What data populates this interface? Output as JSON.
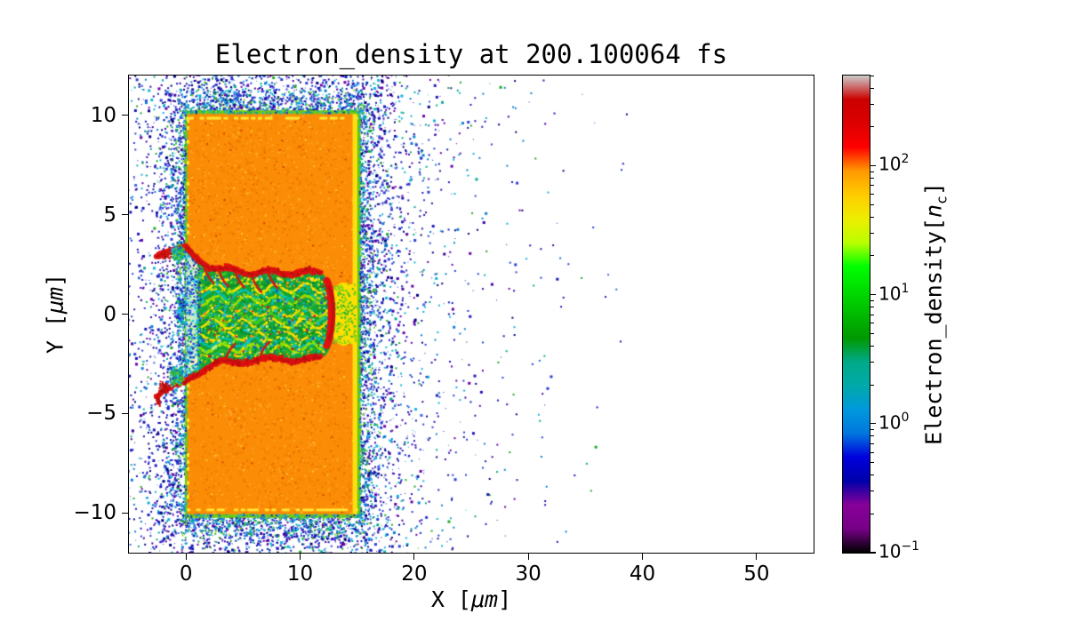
{
  "chart_data": {
    "type": "heatmap",
    "title": "Electron_density at 200.100064 fs",
    "time_fs": 200.100064,
    "xlabel": "X [μm]",
    "xlabel_parts": {
      "prefix": "X [",
      "unit": "μm",
      "suffix": "]"
    },
    "ylabel": "Y [μm]",
    "ylabel_parts": {
      "prefix": "Y [",
      "unit": "μm",
      "suffix": "]"
    },
    "xlim": [
      -5,
      55
    ],
    "ylim": [
      -12,
      12
    ],
    "xticks": [
      {
        "value": 0,
        "label": "0"
      },
      {
        "value": 10,
        "label": "10"
      },
      {
        "value": 20,
        "label": "20"
      },
      {
        "value": 30,
        "label": "30"
      },
      {
        "value": 40,
        "label": "40"
      },
      {
        "value": 50,
        "label": "50"
      }
    ],
    "yticks": [
      {
        "value": 10,
        "label": "10"
      },
      {
        "value": 5,
        "label": "5"
      },
      {
        "value": 0,
        "label": "0"
      },
      {
        "value": -5,
        "label": "−5"
      },
      {
        "value": -10,
        "label": "−10"
      }
    ],
    "grid": false,
    "colorbar": {
      "label": "Electron_density[n_c]",
      "label_parts": {
        "text": "Electron_density[",
        "var": "n",
        "sub": "c",
        "suffix": "]"
      },
      "scale": "log",
      "colormap": "nipy_spectral",
      "vmin": 0.1,
      "vmax": 500,
      "ticks": [
        {
          "value": 100,
          "base": "10",
          "exp": "2"
        },
        {
          "value": 10,
          "base": "10",
          "exp": "1"
        },
        {
          "value": 1,
          "base": "10",
          "exp": "0"
        },
        {
          "value": 0.1,
          "base": "10",
          "exp": "−1"
        }
      ]
    },
    "features": {
      "description": "2D particle-in-cell electron density map: laser-bored channel in an overdense plasma slab with blow-off plasma halo",
      "target_slab": {
        "x_range_um": [
          0,
          15
        ],
        "y_range_um": [
          -10,
          10
        ],
        "density_nc": 90
      },
      "channel": {
        "x_range_um": [
          -0.5,
          13.5
        ],
        "half_width_um": 2.3,
        "mouth_half_width_um": 3.3,
        "interior_density_nc": 10,
        "rim_density_nc": 250,
        "head_x_um": 12.3
      },
      "blowoff_plasma": {
        "x_extent_um": [
          -5,
          38
        ],
        "density_nc": 1,
        "decay_length_um": 1.8
      }
    }
  }
}
